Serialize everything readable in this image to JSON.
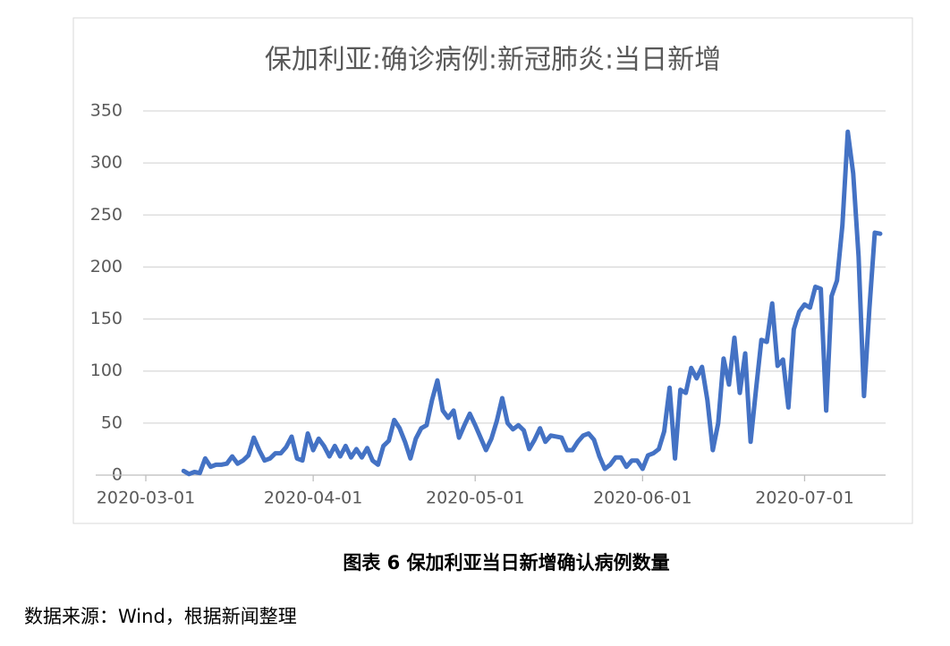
{
  "chart_data": {
    "type": "line",
    "title": "保加利亚:确诊病例:新冠肺炎:当日新增",
    "x": [
      "2020-03-08",
      "2020-03-09",
      "2020-03-10",
      "2020-03-11",
      "2020-03-12",
      "2020-03-13",
      "2020-03-14",
      "2020-03-15",
      "2020-03-16",
      "2020-03-17",
      "2020-03-18",
      "2020-03-19",
      "2020-03-20",
      "2020-03-21",
      "2020-03-22",
      "2020-03-23",
      "2020-03-24",
      "2020-03-25",
      "2020-03-26",
      "2020-03-27",
      "2020-03-28",
      "2020-03-29",
      "2020-03-30",
      "2020-03-31",
      "2020-04-01",
      "2020-04-02",
      "2020-04-03",
      "2020-04-04",
      "2020-04-05",
      "2020-04-06",
      "2020-04-07",
      "2020-04-08",
      "2020-04-09",
      "2020-04-10",
      "2020-04-11",
      "2020-04-12",
      "2020-04-13",
      "2020-04-14",
      "2020-04-15",
      "2020-04-16",
      "2020-04-17",
      "2020-04-18",
      "2020-04-19",
      "2020-04-20",
      "2020-04-21",
      "2020-04-22",
      "2020-04-23",
      "2020-04-24",
      "2020-04-25",
      "2020-04-26",
      "2020-04-27",
      "2020-04-28",
      "2020-04-29",
      "2020-04-30",
      "2020-05-01",
      "2020-05-02",
      "2020-05-03",
      "2020-05-04",
      "2020-05-05",
      "2020-05-06",
      "2020-05-07",
      "2020-05-08",
      "2020-05-09",
      "2020-05-10",
      "2020-05-11",
      "2020-05-12",
      "2020-05-13",
      "2020-05-14",
      "2020-05-15",
      "2020-05-16",
      "2020-05-17",
      "2020-05-18",
      "2020-05-19",
      "2020-05-20",
      "2020-05-21",
      "2020-05-22",
      "2020-05-23",
      "2020-05-24",
      "2020-05-25",
      "2020-05-26",
      "2020-05-27",
      "2020-05-28",
      "2020-05-29",
      "2020-05-30",
      "2020-05-31",
      "2020-06-01",
      "2020-06-02",
      "2020-06-03",
      "2020-06-04",
      "2020-06-05",
      "2020-06-06",
      "2020-06-07",
      "2020-06-08",
      "2020-06-09",
      "2020-06-10",
      "2020-06-11",
      "2020-06-12",
      "2020-06-13",
      "2020-06-14",
      "2020-06-15",
      "2020-06-16",
      "2020-06-17",
      "2020-06-18",
      "2020-06-19",
      "2020-06-20",
      "2020-06-21",
      "2020-06-22",
      "2020-06-23",
      "2020-06-24",
      "2020-06-25",
      "2020-06-26",
      "2020-06-27",
      "2020-06-28",
      "2020-06-29",
      "2020-06-30",
      "2020-07-01",
      "2020-07-02",
      "2020-07-03",
      "2020-07-04",
      "2020-07-05",
      "2020-07-06",
      "2020-07-07",
      "2020-07-08",
      "2020-07-09",
      "2020-07-10",
      "2020-07-11",
      "2020-07-12",
      "2020-07-13",
      "2020-07-14",
      "2020-07-15"
    ],
    "series": [
      {
        "color": "#4472c4",
        "values": [
          4,
          1,
          3,
          2,
          16,
          8,
          10,
          10,
          11,
          18,
          11,
          14,
          19,
          36,
          24,
          14,
          16,
          21,
          21,
          27,
          37,
          16,
          14,
          40,
          24,
          35,
          28,
          18,
          28,
          18,
          28,
          17,
          25,
          17,
          26,
          14,
          10,
          28,
          33,
          53,
          45,
          32,
          16,
          35,
          45,
          48,
          72,
          91,
          62,
          55,
          62,
          36,
          48,
          59,
          48,
          36,
          24,
          35,
          52,
          74,
          50,
          44,
          48,
          43,
          25,
          34,
          45,
          32,
          38,
          37,
          36,
          24,
          24,
          32,
          38,
          40,
          34,
          18,
          6,
          10,
          17,
          17,
          8,
          14,
          14,
          6,
          19,
          21,
          25,
          42,
          84,
          16,
          82,
          79,
          103,
          93,
          104,
          72,
          24,
          50,
          112,
          87,
          132,
          79,
          117,
          32,
          82,
          130,
          128,
          165,
          105,
          111,
          65,
          140,
          157,
          164,
          161,
          181,
          179,
          62,
          172,
          187,
          240,
          330,
          290,
          210,
          76,
          160,
          233,
          232
        ]
      }
    ],
    "xlim": [
      "2020-03-01",
      "2020-07-16"
    ],
    "xticks": [
      "2020-03-01",
      "2020-04-01",
      "2020-05-01",
      "2020-06-01",
      "2020-07-01"
    ],
    "ylim": [
      0,
      350
    ],
    "yticks": [
      0,
      50,
      100,
      150,
      200,
      250,
      300,
      350
    ],
    "grid": true
  },
  "caption": "图表 6 保加利亚当日新增确认病例数量",
  "source": "数据来源：Wind，根据新闻整理"
}
